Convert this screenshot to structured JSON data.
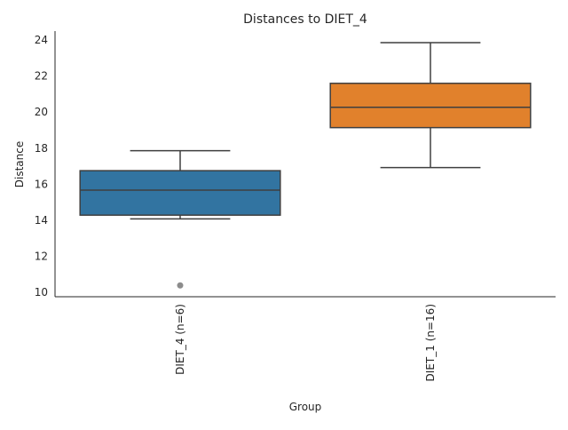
{
  "chart_data": {
    "type": "box",
    "title": "Distances to DIET_4",
    "xlabel": "Group",
    "ylabel": "Distance",
    "ylim": [
      9.75,
      24.5
    ],
    "yticks": [
      10,
      12,
      14,
      16,
      18,
      20,
      22,
      24
    ],
    "grid": false,
    "categories": [
      "DIET_4 (n=6)",
      "DIET_1 (n=16)"
    ],
    "boxes": [
      {
        "category": "DIET_4 (n=6)",
        "color": "#3274a1",
        "whisker_low": 14.07,
        "q1": 14.28,
        "median": 15.67,
        "q3": 16.75,
        "whisker_high": 17.86,
        "outliers": [
          10.38
        ]
      },
      {
        "category": "DIET_1 (n=16)",
        "color": "#e1812c",
        "whisker_low": 16.92,
        "q1": 19.14,
        "median": 20.27,
        "q3": 21.6,
        "whisker_high": 23.86,
        "outliers": []
      }
    ]
  }
}
